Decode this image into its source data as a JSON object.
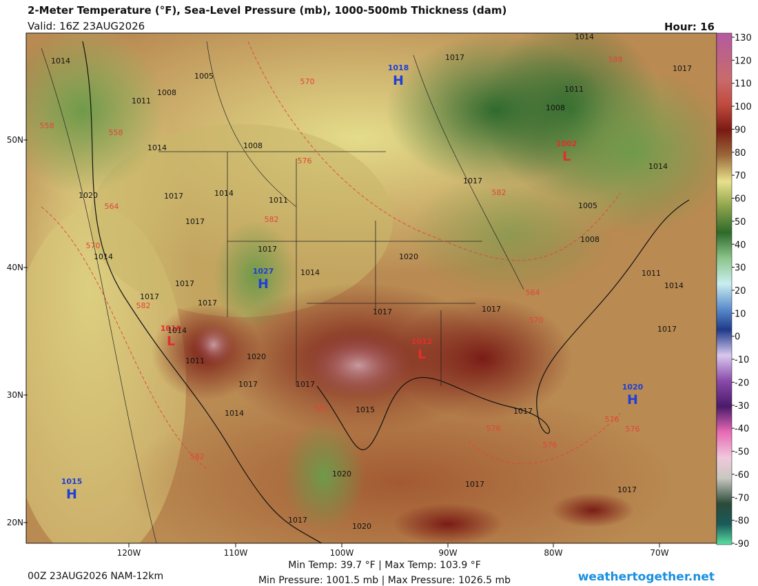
{
  "header": {
    "title": "2-Meter Temperature (°F), Sea-Level Pressure (mb), 1000-500mb Thickness (dam)",
    "valid": "Valid: 16Z 23AUG2026",
    "hour": "Hour: 16"
  },
  "map": {
    "latitude_labels": [
      "50N",
      "40N",
      "30N",
      "20N"
    ],
    "longitude_labels": [
      "120W",
      "110W",
      "100W",
      "90W",
      "80W",
      "70W"
    ],
    "pressure_centers": [
      {
        "letter": "H",
        "value": "1018"
      },
      {
        "letter": "H",
        "value": "1027"
      },
      {
        "letter": "L",
        "value": "1010"
      },
      {
        "letter": "L",
        "value": "1012"
      },
      {
        "letter": "L",
        "value": "1002"
      },
      {
        "letter": "H",
        "value": "1020"
      },
      {
        "letter": "H",
        "value": "1015"
      }
    ],
    "isobar_labels": [
      "1014",
      "1005",
      "1008",
      "1011",
      "1017",
      "1014",
      "1017",
      "1011",
      "1008",
      "1008",
      "1014",
      "1011",
      "1014",
      "1017",
      "1020",
      "1017",
      "1017",
      "1005",
      "1008",
      "1014",
      "1017",
      "1014",
      "1020",
      "1014",
      "1017",
      "1011",
      "1014",
      "1017",
      "1017",
      "1017",
      "1017",
      "1017",
      "1014",
      "1011",
      "1020",
      "1017",
      "1017",
      "1014",
      "1015",
      "1017",
      "1020",
      "1017",
      "1017",
      "1017",
      "1020"
    ],
    "thickness_labels": [
      "570",
      "588",
      "558",
      "558",
      "576",
      "564",
      "582",
      "582",
      "570",
      "564",
      "570",
      "582",
      "582",
      "576",
      "576",
      "576",
      "576",
      "582"
    ]
  },
  "colorbar": {
    "ticks": [
      130,
      120,
      110,
      100,
      90,
      80,
      70,
      60,
      50,
      40,
      30,
      20,
      10,
      0,
      -10,
      -20,
      -30,
      -40,
      -50,
      -60,
      -70,
      -80,
      -90
    ]
  },
  "footer": {
    "run": "00Z 23AUG2026 NAM-12km",
    "temp": "Min Temp:  39.7 °F | Max Temp: 103.9 °F",
    "pressure": "Min Pressure: 1001.5 mb | Max Pressure: 1026.5 mb",
    "site": "weathertogether.net"
  }
}
